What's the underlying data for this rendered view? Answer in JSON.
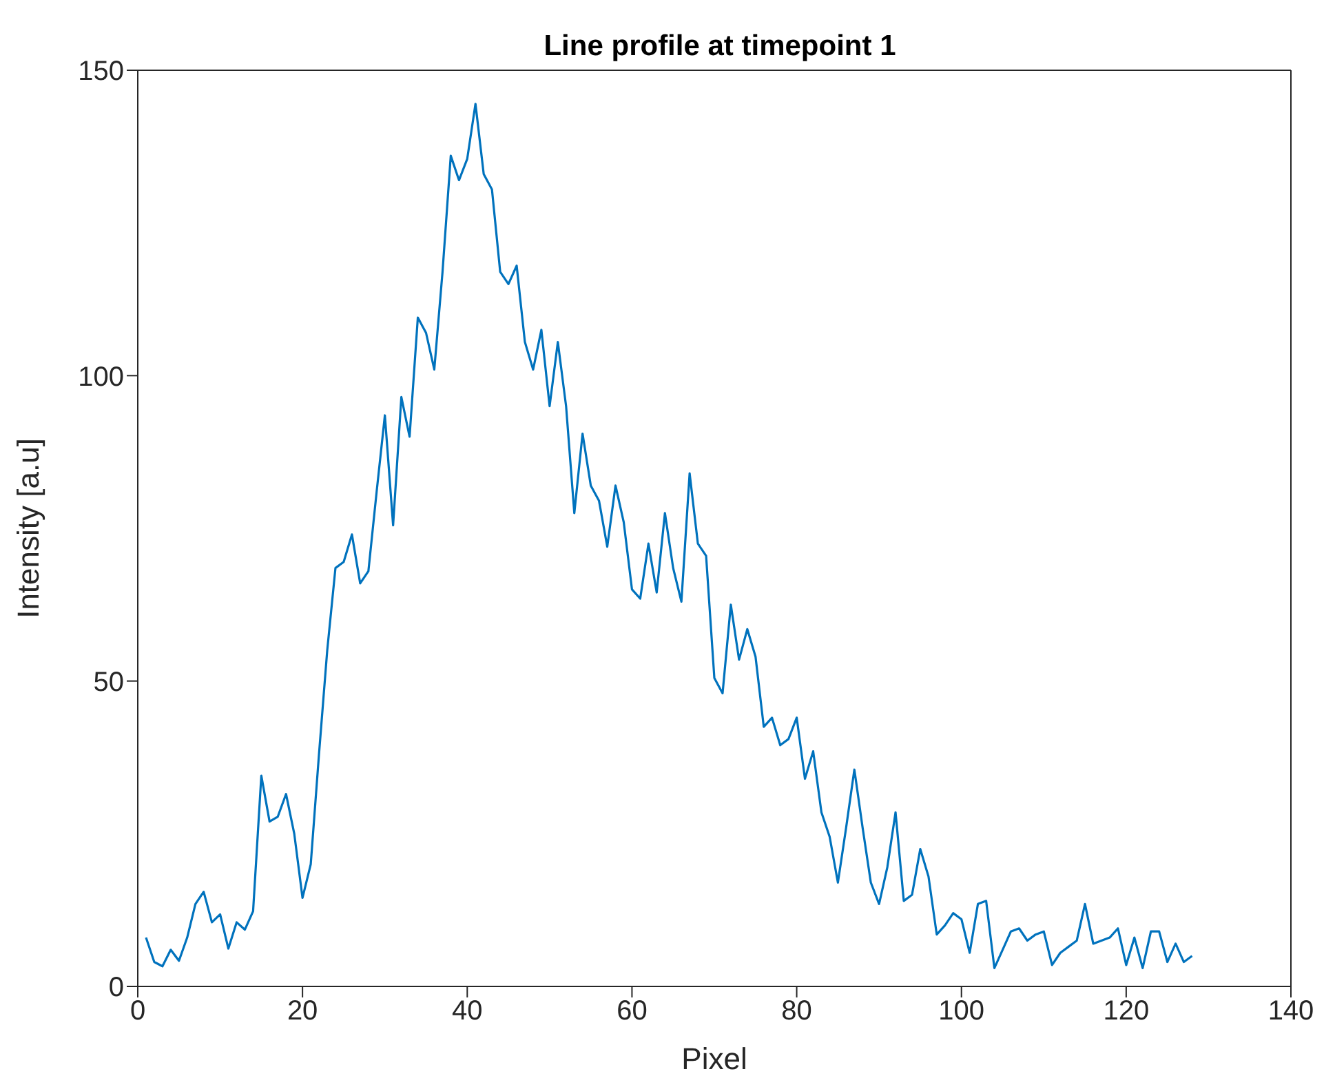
{
  "chart_data": {
    "type": "line",
    "title": "Line profile at timepoint 1",
    "xlabel": "Pixel",
    "ylabel": "Intensity [a.u]",
    "x": [
      1,
      2,
      3,
      4,
      5,
      6,
      7,
      8,
      9,
      10,
      11,
      12,
      13,
      14,
      15,
      16,
      17,
      18,
      19,
      20,
      21,
      22,
      23,
      24,
      25,
      26,
      27,
      28,
      29,
      30,
      31,
      32,
      33,
      34,
      35,
      36,
      37,
      38,
      39,
      40,
      41,
      42,
      43,
      44,
      45,
      46,
      47,
      48,
      49,
      50,
      51,
      52,
      53,
      54,
      55,
      56,
      57,
      58,
      59,
      60,
      61,
      62,
      63,
      64,
      65,
      66,
      67,
      68,
      69,
      70,
      71,
      72,
      73,
      74,
      75,
      76,
      77,
      78,
      79,
      80,
      81,
      82,
      83,
      84,
      85,
      86,
      87,
      88,
      89,
      90,
      91,
      92,
      93,
      94,
      95,
      96,
      97,
      98,
      99,
      100,
      101,
      102,
      103,
      104,
      105,
      106,
      107,
      108,
      109,
      110,
      111,
      112,
      113,
      114,
      115,
      116,
      117,
      118,
      119,
      120,
      121,
      122,
      123,
      124,
      125,
      126,
      127,
      128
    ],
    "series": [
      {
        "color": "#0072bd",
        "values": [
          8,
          4,
          3.3,
          6,
          4.2,
          8,
          13.5,
          15.5,
          10.5,
          11.8,
          6.2,
          10.5,
          9.3,
          12.3,
          34.5,
          27,
          27.8,
          31.5,
          25,
          14.5,
          20,
          38,
          55,
          68.5,
          69.5,
          74,
          66,
          68,
          81,
          93.5,
          75.5,
          96.5,
          90,
          109.5,
          107,
          101,
          117,
          136,
          132,
          135.5,
          144.5,
          133,
          130.5,
          117,
          115,
          118,
          105.5,
          101,
          107.5,
          95,
          105.5,
          95,
          77.5,
          90.5,
          82,
          79.5,
          72,
          82,
          76,
          65,
          63.5,
          72.5,
          64.5,
          77.5,
          68.5,
          63,
          84,
          72.5,
          70.5,
          50.5,
          48,
          62.5,
          53.5,
          58.5,
          54,
          42.5,
          44,
          39.5,
          40.5,
          44,
          34,
          38.5,
          28.5,
          24.5,
          17,
          26,
          35.5,
          26,
          17,
          13.5,
          19.5,
          28.5,
          14,
          15,
          22.5,
          18,
          8.5,
          10,
          12,
          11,
          5.5,
          13.5,
          14,
          3,
          6,
          9,
          9.5,
          7.5,
          8.5,
          9,
          3.5,
          5.5,
          6.5,
          7.5,
          13.5,
          7,
          7.5,
          8,
          9.5,
          3.5,
          8,
          3,
          9,
          9,
          4,
          7,
          4,
          5
        ]
      }
    ],
    "xlim": [
      0,
      140
    ],
    "xticks": [
      0,
      20,
      40,
      60,
      80,
      100,
      120,
      140
    ],
    "ylim": [
      0,
      150
    ],
    "yticks": [
      0,
      50,
      100,
      150
    ],
    "grid": false,
    "legend": false,
    "marker": "none",
    "line_style": "solid"
  }
}
